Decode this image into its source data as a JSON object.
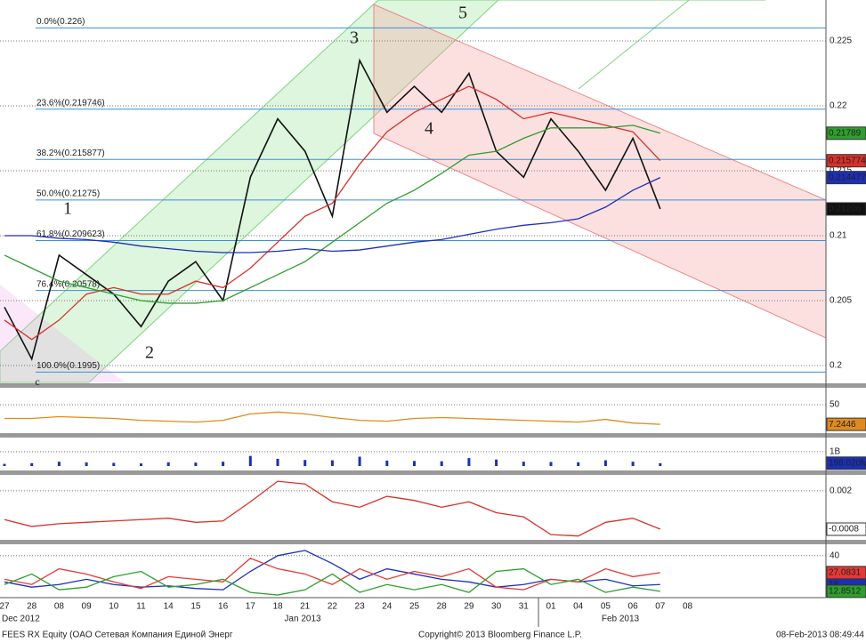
{
  "chart_data": [
    {
      "type": "line",
      "categories": [
        "27",
        "28",
        "08",
        "09",
        "10",
        "11",
        "14",
        "15",
        "16",
        "17",
        "18",
        "21",
        "22",
        "23",
        "24",
        "25",
        "28",
        "29",
        "30",
        "31",
        "01",
        "04",
        "05",
        "06",
        "07",
        "08"
      ],
      "x_group_labels": [
        "Dec 2012",
        "Jan 2013",
        "Feb 2013"
      ],
      "ylim": [
        0.1987,
        0.22815
      ],
      "yticks": [
        0.2,
        0.205,
        0.21,
        0.215,
        0.22,
        0.225
      ],
      "grid": true,
      "annotations": [
        "1",
        "2",
        "3",
        "4",
        "5",
        "c"
      ],
      "fib_levels": [
        {
          "value": 0.226,
          "label": "0.0%(0.226)"
        },
        {
          "value": 0.219746,
          "label": "23.6%(0.219746)"
        },
        {
          "value": 0.215877,
          "label": "38.2%(0.215877)"
        },
        {
          "value": 0.21275,
          "label": "50.0%(0.21275)"
        },
        {
          "value": 0.209623,
          "label": "61.8%(0.209623)"
        },
        {
          "value": 0.20578,
          "label": "76.4%(0.20578)"
        },
        {
          "value": 0.1995,
          "label": "100.0%(0.1995)"
        }
      ],
      "series": [
        {
          "name": "Close",
          "color": "#111111",
          "values": [
            0.2045,
            0.2005,
            0.2085,
            0.207,
            0.2055,
            0.203,
            0.2065,
            0.208,
            0.205,
            0.2145,
            0.219,
            0.2165,
            0.2115,
            0.2235,
            0.2195,
            0.2215,
            0.2195,
            0.2225,
            0.2165,
            0.2145,
            0.219,
            0.2165,
            0.2135,
            0.2175,
            0.21206,
            null
          ]
        },
        {
          "name": "SMA red",
          "color": "#d9302a",
          "values": [
            0.2035,
            0.202,
            0.2035,
            0.2055,
            0.206,
            0.2055,
            0.2055,
            0.2065,
            0.206,
            0.2075,
            0.2095,
            0.2115,
            0.2125,
            0.2155,
            0.218,
            0.2195,
            0.2205,
            0.2215,
            0.2205,
            0.219,
            0.2195,
            0.219,
            0.2185,
            0.218,
            0.215774,
            null
          ]
        },
        {
          "name": "SMA green",
          "color": "#2e9e2e",
          "values": [
            0.2085,
            0.2075,
            0.2065,
            0.206,
            0.2055,
            0.205,
            0.2048,
            0.2048,
            0.205,
            0.206,
            0.207,
            0.208,
            0.2095,
            0.211,
            0.2125,
            0.2135,
            0.2148,
            0.2162,
            0.2165,
            0.2175,
            0.2183,
            0.2183,
            0.2183,
            0.2185,
            0.21789,
            null
          ]
        },
        {
          "name": "SMA blue",
          "color": "#1c2fb8",
          "values": [
            0.21,
            0.21,
            0.2098,
            0.2097,
            0.2095,
            0.2092,
            0.209,
            0.2088,
            0.2087,
            0.2087,
            0.2088,
            0.209,
            0.2088,
            0.2089,
            0.2092,
            0.2095,
            0.2097,
            0.2101,
            0.2105,
            0.2108,
            0.211,
            0.2113,
            0.2122,
            0.2135,
            0.214477,
            null
          ]
        }
      ]
    },
    {
      "type": "line",
      "ylim": [
        -10,
        87
      ],
      "yticks": [
        50
      ],
      "series": [
        {
          "name": "RSI",
          "color": "#e08a1e",
          "values": [
            20,
            20,
            24,
            22,
            20,
            16,
            14,
            12,
            16,
            30,
            34,
            30,
            22,
            16,
            14,
            20,
            22,
            20,
            18,
            16,
            14,
            12,
            18,
            10,
            7.2446,
            null
          ]
        }
      ]
    },
    {
      "type": "bar",
      "ylim": [
        0,
        1980000000
      ],
      "yticks": [
        {
          "value": 1000000000,
          "label": "1B"
        }
      ],
      "series": [
        {
          "name": "Volume",
          "color": "#1c2fb8",
          "values": [
            150000000,
            200000000,
            300000000,
            250000000,
            220000000,
            180000000,
            260000000,
            240000000,
            300000000,
            700000000,
            500000000,
            420000000,
            400000000,
            650000000,
            380000000,
            350000000,
            330000000,
            550000000,
            450000000,
            300000000,
            280000000,
            260000000,
            400000000,
            300000000,
            198020000,
            null
          ],
          "value_labels": [
            null,
            null,
            null,
            null,
            null,
            null,
            null,
            null,
            null,
            null,
            null,
            null,
            null,
            null,
            null,
            null,
            null,
            null,
            null,
            null,
            null,
            null,
            null,
            null,
            "198.020M",
            null
          ]
        }
      ]
    },
    {
      "type": "line",
      "ylim": [
        -0.00145,
        0.0031
      ],
      "yticks": [
        0.002
      ],
      "series": [
        {
          "name": "MACD",
          "color": "#d9302a",
          "values": [
            -0.0001,
            -0.0006,
            -0.0004,
            -0.0003,
            -0.0002,
            -0.0001,
            0,
            -0.0003,
            -0.0002,
            0.0012,
            0.0027,
            0.0025,
            0.0012,
            0.0008,
            0.0016,
            0.0013,
            0.0008,
            0.0012,
            0.0004,
            0.0001,
            -0.0012,
            -0.0013,
            -0.0003,
            0,
            -0.0008,
            null
          ]
        }
      ]
    },
    {
      "type": "line",
      "ylim": [
        8,
        48
      ],
      "yticks": [
        40
      ],
      "series": [
        {
          "name": "ADX",
          "color": "#1c2fb8",
          "values": [
            20,
            16,
            18,
            22,
            18,
            16,
            17,
            15,
            14,
            28,
            40,
            44,
            34,
            22,
            30,
            26,
            22,
            20,
            16,
            18,
            22,
            20,
            22,
            17,
            18,
            null
          ]
        },
        {
          "name": "DI+",
          "color": "#e53935",
          "values": [
            22,
            18,
            30,
            26,
            20,
            15,
            24,
            22,
            20,
            38,
            30,
            26,
            18,
            30,
            22,
            28,
            24,
            30,
            16,
            14,
            22,
            20,
            30,
            24,
            27.0831,
            null
          ]
        },
        {
          "name": "DI-",
          "color": "#2e9e2e",
          "values": [
            18,
            26,
            14,
            16,
            24,
            28,
            16,
            18,
            22,
            12,
            10,
            14,
            26,
            12,
            18,
            14,
            18,
            12,
            28,
            30,
            18,
            22,
            12,
            16,
            12.8512,
            null
          ]
        }
      ]
    }
  ],
  "footer": {
    "left": "FEES RX Equity (OAO Сетевая Компания Единой Энерг",
    "center": "Copyright© 2013 Bloomberg Finance L.P.",
    "right": "08-Feb-2013 08:49:44"
  }
}
